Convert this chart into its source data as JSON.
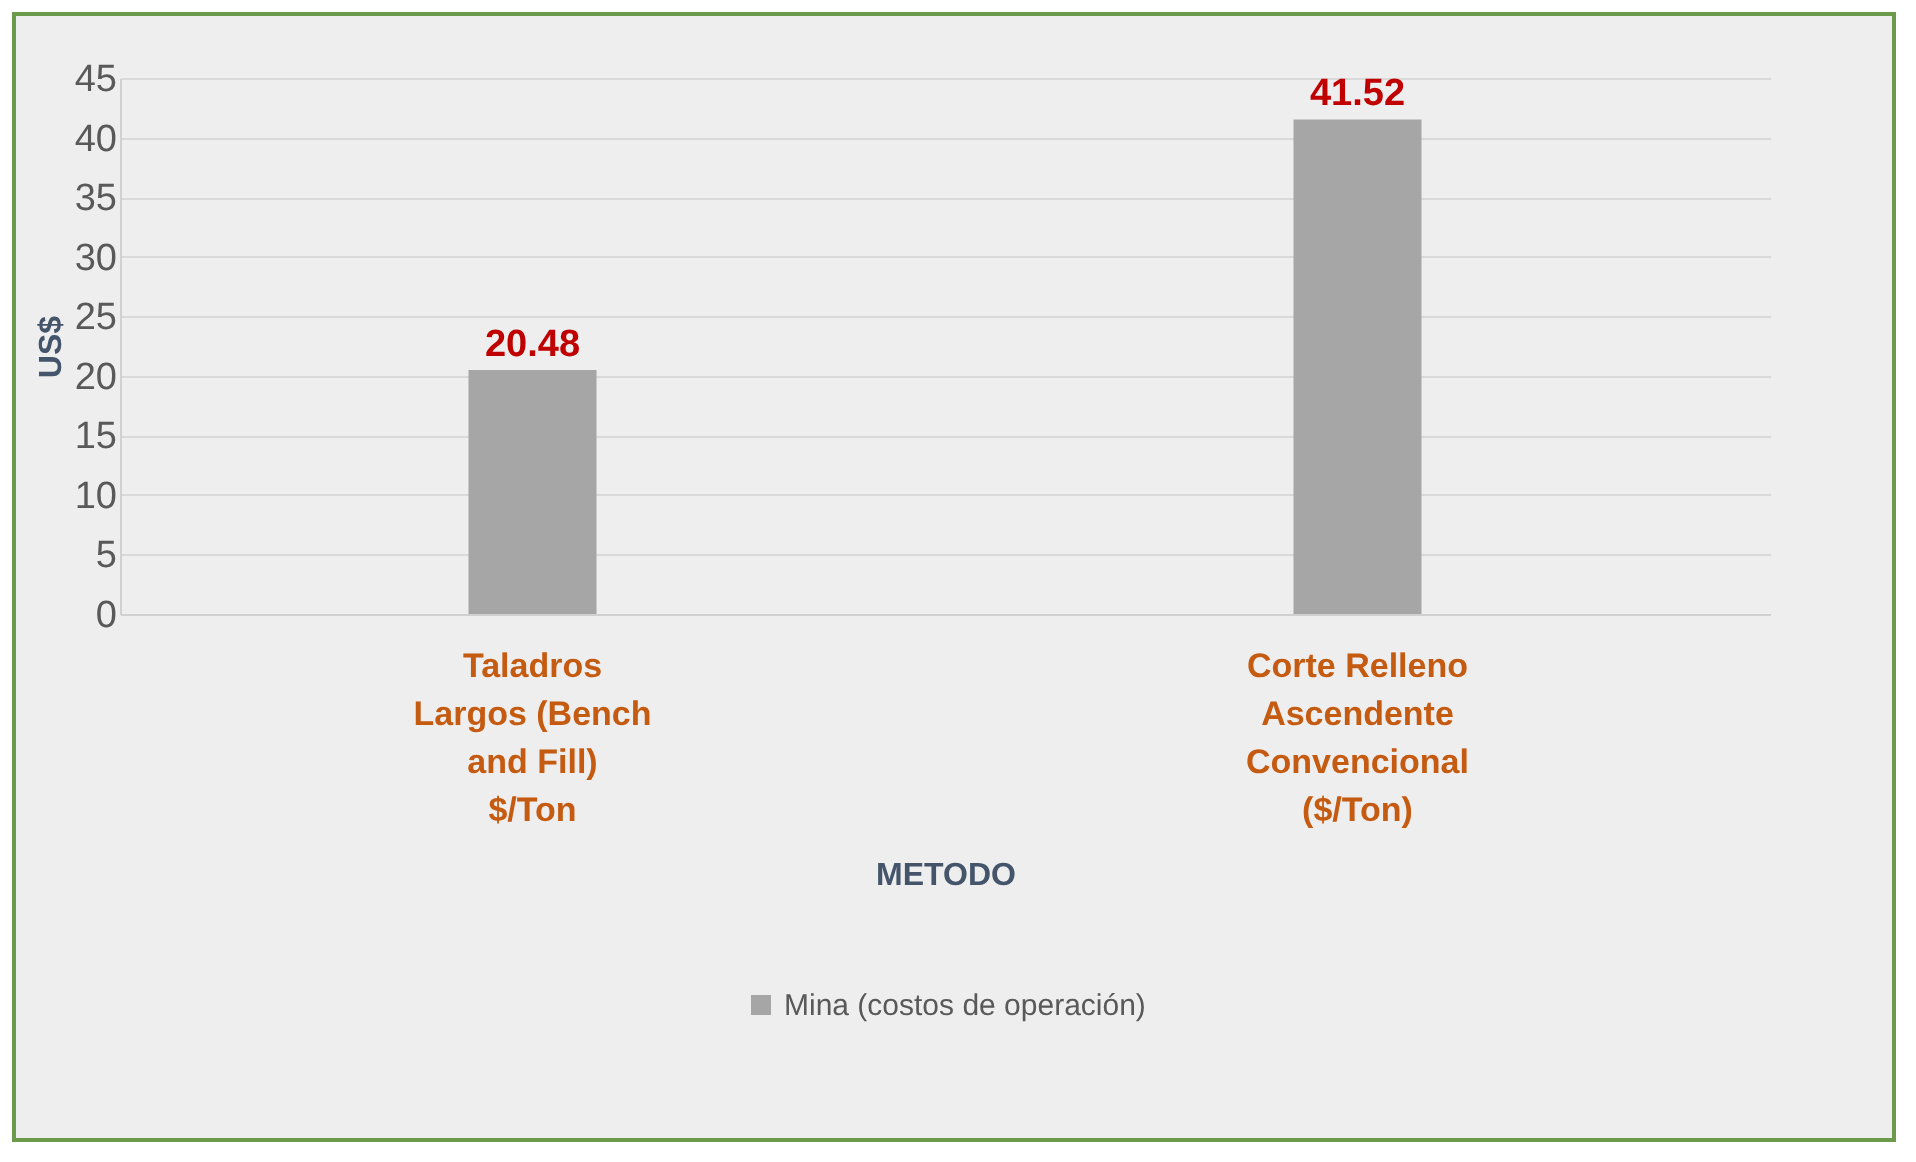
{
  "chart_data": {
    "type": "bar",
    "xlabel": "METODO",
    "ylabel": "US$",
    "categories": [
      "Taladros Largos (Bench and Fill) $/Ton",
      "Corte Relleno Ascendente Convencional ($/Ton)"
    ],
    "series": [
      {
        "name": "Mina (costos de operación)",
        "color": "#a6a6a6",
        "values": [
          20.48,
          41.52
        ]
      }
    ],
    "ylim": [
      0,
      45
    ],
    "yticks": [
      0,
      5,
      10,
      15,
      20,
      25,
      30,
      35,
      40,
      45
    ],
    "grid": "y",
    "legend": "bottom",
    "data_labels": true
  }
}
